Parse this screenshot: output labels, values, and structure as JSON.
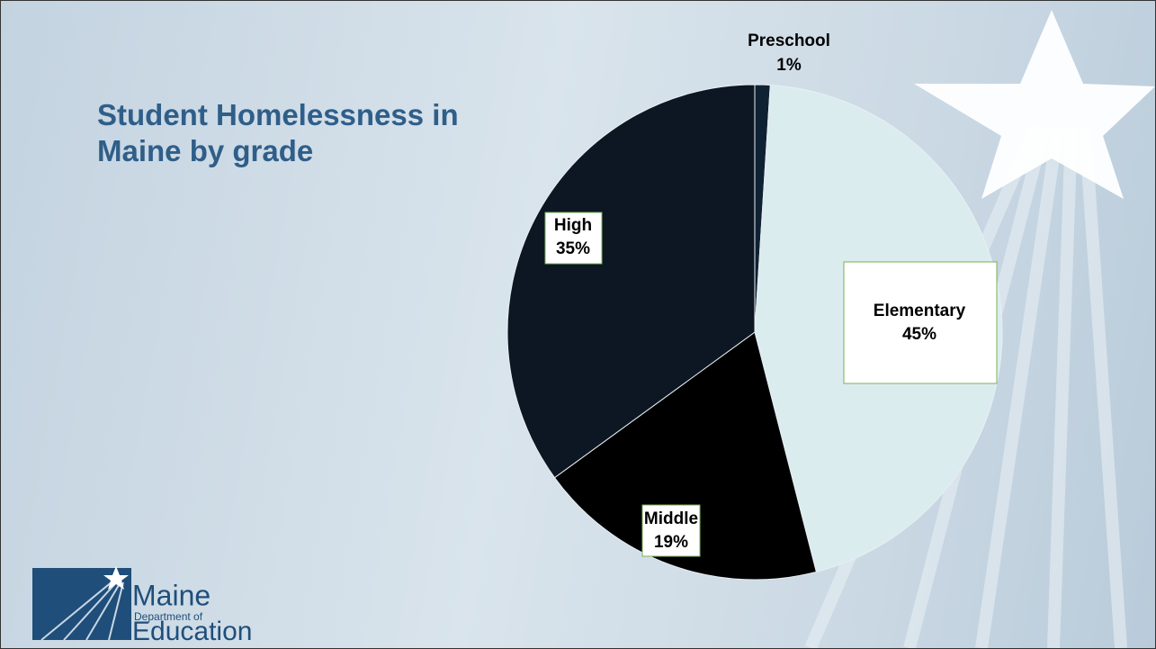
{
  "chart_data": {
    "type": "pie",
    "title": "Student Homelessness in Maine by grade",
    "categories": [
      "Preschool",
      "Elementary",
      "Middle",
      "High"
    ],
    "values": [
      1,
      45,
      19,
      35
    ],
    "value_labels": [
      "1%",
      "45%",
      "19%",
      "35%"
    ],
    "colors": [
      "#0f2233",
      "#dbecef",
      "#000000",
      "#0c1723"
    ]
  },
  "logo": {
    "name": "Maine",
    "line2": "Department of",
    "line3": "Education"
  }
}
